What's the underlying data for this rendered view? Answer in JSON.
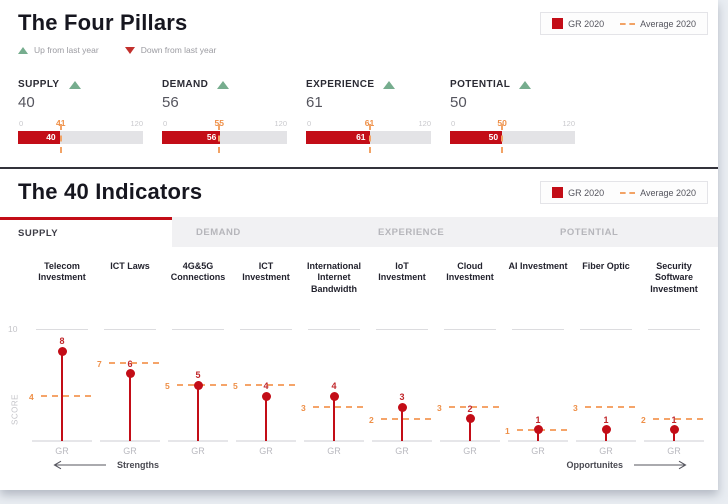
{
  "header": {
    "pillars_title": "The Four Pillars",
    "indicators_title": "The 40 Indicators",
    "legend": {
      "gr": "GR 2020",
      "average": "Average 2020"
    },
    "trend_legend": {
      "up": "Up from last year",
      "down": "Down from last year"
    }
  },
  "scale": {
    "min": "0",
    "max": "120"
  },
  "tabs": [
    {
      "label": "SUPPLY",
      "active": true
    },
    {
      "label": "DEMAND",
      "active": false
    },
    {
      "label": "EXPERIENCE",
      "active": false
    },
    {
      "label": "POTENTIAL",
      "active": false
    }
  ],
  "axis": {
    "top_tick": "10",
    "ylabel": "SCORE",
    "xtick": "GR"
  },
  "footer": {
    "strengths": "Strengths",
    "opportunities": "Opportunites"
  },
  "colors": {
    "gr_red": "#c30d17",
    "average_orange": "#f2a366",
    "up_green": "#76ad8e",
    "down_red": "#c2302c",
    "track_gray": "#e3e3e6"
  },
  "chart_data": [
    {
      "type": "bar",
      "title": "The Four Pillars",
      "categories": [
        "SUPPLY",
        "DEMAND",
        "EXPERIENCE",
        "POTENTIAL"
      ],
      "series": [
        {
          "name": "GR 2020",
          "values": [
            40,
            56,
            61,
            50
          ]
        },
        {
          "name": "Average 2020",
          "values": [
            41,
            55,
            61,
            50
          ]
        }
      ],
      "trend_vs_last_year": [
        "up",
        "up",
        "up",
        "up"
      ],
      "xlim": [
        0,
        120
      ],
      "legend_position": "top-right"
    },
    {
      "type": "bar",
      "title": "The 40 Indicators - SUPPLY",
      "categories": [
        "Telecom Investment",
        "ICT Laws",
        "4G&5G Connections",
        "ICT Investment",
        "International Internet Bandwidth",
        "IoT Investment",
        "Cloud Investment",
        "AI Investment",
        "Fiber Optic",
        "Security Software Investment"
      ],
      "series": [
        {
          "name": "GR 2020",
          "values": [
            8,
            6,
            5,
            4,
            4,
            3,
            2,
            1,
            1,
            1
          ]
        },
        {
          "name": "Average 2020",
          "values": [
            4,
            7,
            5,
            5,
            3,
            2,
            3,
            1,
            3,
            2
          ]
        }
      ],
      "xlabel": "GR",
      "ylabel": "SCORE",
      "ylim": [
        0,
        10
      ],
      "grid": "top-and-baseline-only",
      "legend_position": "top-right"
    }
  ]
}
